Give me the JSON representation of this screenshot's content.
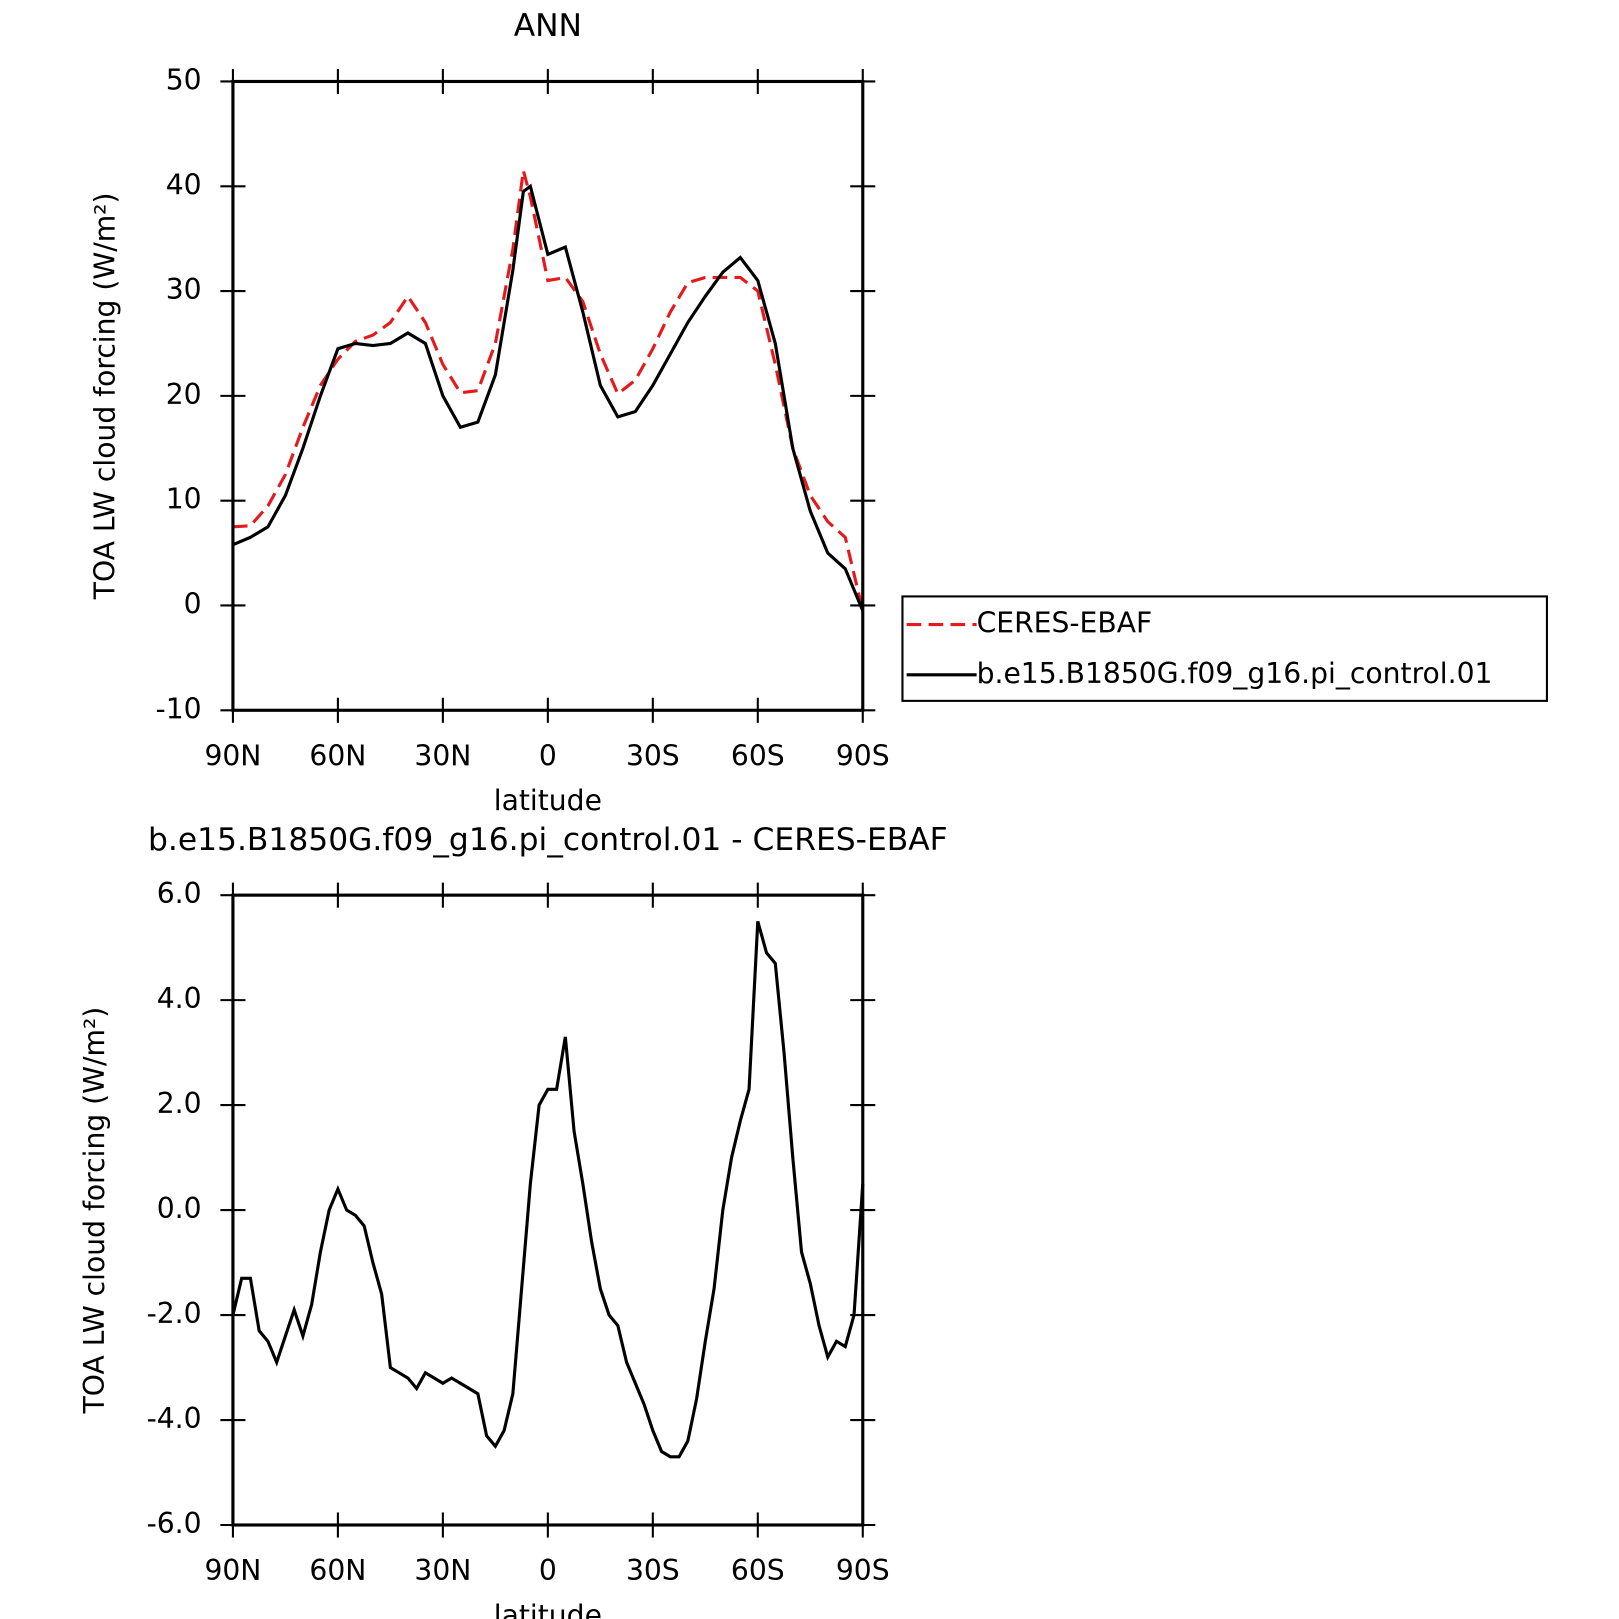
{
  "chart_data": [
    {
      "type": "line",
      "title": "ANN",
      "xlabel": "latitude",
      "ylabel": "TOA LW cloud forcing (W/m²)",
      "x": [
        90,
        85,
        80,
        75,
        70,
        65,
        60,
        55,
        50,
        45,
        40,
        35,
        30,
        25,
        20,
        15,
        10,
        7,
        5,
        0,
        -5,
        -10,
        -15,
        -20,
        -25,
        -30,
        -35,
        -40,
        -45,
        -50,
        -55,
        -60,
        -65,
        -70,
        -75,
        -80,
        -85,
        -90
      ],
      "series": [
        {
          "name": "CERES-EBAF",
          "color": "#e41a1c",
          "dashed": true,
          "values": [
            7.5,
            7.6,
            9.5,
            12.5,
            17,
            21,
            23.5,
            25.2,
            25.8,
            27,
            29.5,
            27,
            23,
            20.3,
            20.5,
            25,
            34,
            41.5,
            39,
            31,
            31.3,
            29,
            24,
            20.2,
            21.5,
            24.5,
            28,
            30.8,
            31.3,
            31.3,
            31.3,
            30,
            23,
            15,
            10.5,
            8,
            6.5,
            -0.5
          ]
        },
        {
          "name": "b.e15.B1850G.f09_g16.pi_control.01",
          "color": "#000000",
          "dashed": false,
          "values": [
            5.8,
            6.5,
            7.5,
            10.5,
            15,
            20,
            24.5,
            25,
            24.8,
            25,
            26,
            25,
            20,
            17,
            17.5,
            22,
            32,
            39.5,
            40,
            33.5,
            34.2,
            28,
            21,
            18,
            18.5,
            21,
            24,
            27,
            29.5,
            31.8,
            33.2,
            31,
            25,
            15,
            9,
            5,
            3.5,
            -0.5
          ]
        }
      ],
      "xlim": [
        90,
        -90
      ],
      "xticks": [
        {
          "value": 90,
          "label": "90N"
        },
        {
          "value": 60,
          "label": "60N"
        },
        {
          "value": 30,
          "label": "30N"
        },
        0,
        {
          "value": -30,
          "label": "30S"
        },
        {
          "value": -60,
          "label": "60S"
        },
        {
          "value": -90,
          "label": "90S"
        }
      ],
      "ylim": [
        -10,
        50
      ],
      "yticks": [
        50,
        40,
        30,
        20,
        10,
        0,
        -10
      ],
      "legend": "outside-right"
    },
    {
      "type": "line",
      "title": "b.e15.B1850G.f09_g16.pi_control.01 - CERES-EBAF",
      "xlabel": "latitude",
      "ylabel": "TOA LW cloud forcing (W/m²)",
      "x": [
        90,
        87.5,
        85,
        82.5,
        80,
        77.5,
        75,
        72.5,
        70,
        67.5,
        65,
        62.5,
        60,
        57.5,
        55,
        52.5,
        50,
        47.5,
        45,
        42.5,
        40,
        37.5,
        35,
        32.5,
        30,
        27.5,
        25,
        22.5,
        20,
        17.5,
        15,
        12.5,
        10,
        7.5,
        5,
        2.5,
        0,
        -2.5,
        -5,
        -7.5,
        -10,
        -12.5,
        -15,
        -17.5,
        -20,
        -22.5,
        -25,
        -27.5,
        -30,
        -32.5,
        -35,
        -37.5,
        -40,
        -42.5,
        -45,
        -47.5,
        -50,
        -52.5,
        -55,
        -57.5,
        -60,
        -62.5,
        -65,
        -67.5,
        -70,
        -72.5,
        -75,
        -77.5,
        -80,
        -82.5,
        -85,
        -87.5,
        -90
      ],
      "series": [
        {
          "color": "#000000",
          "dashed": false,
          "values": [
            -2.0,
            -1.3,
            -1.3,
            -2.3,
            -2.5,
            -2.9,
            -2.4,
            -1.9,
            -2.4,
            -1.8,
            -0.8,
            0.0,
            0.4,
            0.0,
            -0.1,
            -0.3,
            -1.0,
            -1.6,
            -3.0,
            -3.1,
            -3.2,
            -3.4,
            -3.1,
            -3.2,
            -3.3,
            -3.2,
            -3.3,
            -3.4,
            -3.5,
            -4.3,
            -4.5,
            -4.2,
            -3.5,
            -1.5,
            0.5,
            2.0,
            2.3,
            2.3,
            3.3,
            1.5,
            0.5,
            -0.6,
            -1.5,
            -2.0,
            -2.2,
            -2.9,
            -3.3,
            -3.7,
            -4.2,
            -4.6,
            -4.7,
            -4.7,
            -4.4,
            -3.6,
            -2.5,
            -1.5,
            0.0,
            1.0,
            1.7,
            2.3,
            5.5,
            4.9,
            4.7,
            3.0,
            1.0,
            -0.8,
            -1.4,
            -2.2,
            -2.8,
            -2.5,
            -2.6,
            -2.0,
            0.5
          ]
        }
      ],
      "xlim": [
        90,
        -90
      ],
      "xticks": [
        {
          "value": 90,
          "label": "90N"
        },
        {
          "value": 60,
          "label": "60N"
        },
        {
          "value": 30,
          "label": "30N"
        },
        0,
        {
          "value": -30,
          "label": "30S"
        },
        {
          "value": -60,
          "label": "60S"
        },
        {
          "value": -90,
          "label": "90S"
        }
      ],
      "ylim": [
        -6,
        6
      ],
      "yticks": [
        {
          "value": 6,
          "label": "6.0"
        },
        {
          "value": 4,
          "label": "4.0"
        },
        {
          "value": 2,
          "label": "2.0"
        },
        {
          "value": 0,
          "label": "0.0"
        },
        {
          "value": -2,
          "label": "-2.0"
        },
        {
          "value": -4,
          "label": "-4.0"
        },
        {
          "value": -6,
          "label": "-6.0"
        }
      ]
    }
  ]
}
